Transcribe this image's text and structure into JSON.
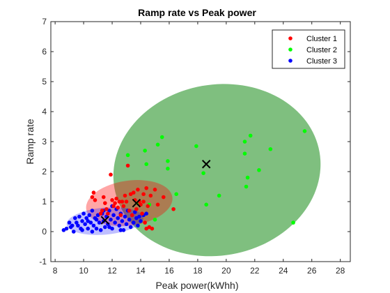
{
  "chart_data": {
    "type": "scatter",
    "title": "Ramp rate vs Peak power",
    "xlabel": "Peak power(kWhh)",
    "ylabel": "Ramp rate",
    "xlim": [
      7.7,
      28.7
    ],
    "ylim": [
      -1,
      7
    ],
    "xticks": [
      8,
      10,
      12,
      14,
      16,
      18,
      20,
      22,
      24,
      26,
      28
    ],
    "yticks": [
      -1,
      0,
      1,
      2,
      3,
      4,
      5,
      6,
      7
    ],
    "grid": false,
    "legend_position": "top-right",
    "series": [
      {
        "name": "Cluster 1",
        "color": "#ff0000",
        "points": [
          [
            10.6,
            1.15
          ],
          [
            10.7,
            1.3
          ],
          [
            10.8,
            1.05
          ],
          [
            11.2,
            0.6
          ],
          [
            11.3,
            0.7
          ],
          [
            11.4,
            1.15
          ],
          [
            11.5,
            0.95
          ],
          [
            11.6,
            0.75
          ],
          [
            11.7,
            0.6
          ],
          [
            11.9,
            1.9
          ],
          [
            12.0,
            1.05
          ],
          [
            12.1,
            0.85
          ],
          [
            12.2,
            0.95
          ],
          [
            12.3,
            1.1
          ],
          [
            12.4,
            0.8
          ],
          [
            12.5,
            1.0
          ],
          [
            12.6,
            0.55
          ],
          [
            12.7,
            1.0
          ],
          [
            12.8,
            0.85
          ],
          [
            12.9,
            1.2
          ],
          [
            13.0,
            1.0
          ],
          [
            13.1,
            2.2
          ],
          [
            13.2,
            0.7
          ],
          [
            13.3,
            1.25
          ],
          [
            13.4,
            0.55
          ],
          [
            13.5,
            1.3
          ],
          [
            13.6,
            1.05
          ],
          [
            13.7,
            0.75
          ],
          [
            13.8,
            1.4
          ],
          [
            13.9,
            1.0
          ],
          [
            14.0,
            0.9
          ],
          [
            14.1,
            0.6
          ],
          [
            14.2,
            1.25
          ],
          [
            14.3,
            0.3
          ],
          [
            14.4,
            1.45
          ],
          [
            14.5,
            0.85
          ],
          [
            14.6,
            0.15
          ],
          [
            14.7,
            1.2
          ],
          [
            14.8,
            0.1
          ],
          [
            15.0,
            1.4
          ],
          [
            15.2,
            0.9
          ],
          [
            15.6,
            1.15
          ],
          [
            16.3,
            0.75
          ],
          [
            14.4,
            0.1
          ],
          [
            14.2,
            1.0
          ]
        ]
      },
      {
        "name": "Cluster 2",
        "color": "#00ff00",
        "points": [
          [
            13.1,
            2.55
          ],
          [
            13.8,
            0.95
          ],
          [
            14.3,
            2.7
          ],
          [
            14.4,
            2.25
          ],
          [
            14.6,
            0.9
          ],
          [
            15.0,
            0.4
          ],
          [
            15.2,
            2.9
          ],
          [
            15.5,
            3.15
          ],
          [
            15.9,
            2.35
          ],
          [
            15.9,
            2.1
          ],
          [
            16.5,
            1.25
          ],
          [
            17.9,
            2.85
          ],
          [
            18.4,
            1.95
          ],
          [
            18.6,
            0.9
          ],
          [
            19.5,
            1.2
          ],
          [
            21.3,
            2.6
          ],
          [
            21.3,
            3.0
          ],
          [
            21.4,
            1.5
          ],
          [
            21.5,
            1.8
          ],
          [
            21.7,
            3.2
          ],
          [
            22.3,
            2.05
          ],
          [
            23.1,
            2.75
          ],
          [
            24.7,
            0.3
          ],
          [
            25.5,
            3.35
          ]
        ]
      },
      {
        "name": "Cluster 3",
        "color": "#0000ff",
        "points": [
          [
            8.6,
            0.05
          ],
          [
            8.8,
            0.1
          ],
          [
            9.0,
            0.3
          ],
          [
            9.1,
            0.15
          ],
          [
            9.2,
            0.2
          ],
          [
            9.3,
            0.0
          ],
          [
            9.4,
            0.45
          ],
          [
            9.5,
            0.3
          ],
          [
            9.6,
            0.2
          ],
          [
            9.7,
            0.5
          ],
          [
            9.8,
            0.1
          ],
          [
            9.9,
            0.35
          ],
          [
            10.0,
            0.6
          ],
          [
            10.1,
            0.25
          ],
          [
            10.2,
            0.45
          ],
          [
            10.3,
            0.1
          ],
          [
            10.4,
            0.55
          ],
          [
            10.5,
            0.3
          ],
          [
            10.6,
            0.7
          ],
          [
            10.7,
            0.2
          ],
          [
            10.8,
            0.45
          ],
          [
            10.9,
            0.1
          ],
          [
            11.0,
            0.55
          ],
          [
            11.1,
            0.3
          ],
          [
            11.2,
            0.05
          ],
          [
            11.3,
            0.6
          ],
          [
            11.4,
            0.35
          ],
          [
            11.5,
            0.15
          ],
          [
            11.6,
            0.5
          ],
          [
            11.7,
            0.25
          ],
          [
            11.8,
            0.7
          ],
          [
            11.9,
            0.4
          ],
          [
            12.0,
            0.1
          ],
          [
            12.1,
            0.55
          ],
          [
            12.2,
            0.3
          ],
          [
            12.3,
            0.75
          ],
          [
            12.4,
            0.45
          ],
          [
            12.5,
            0.2
          ],
          [
            12.6,
            0.6
          ],
          [
            12.7,
            0.35
          ],
          [
            12.8,
            0.05
          ],
          [
            12.9,
            0.5
          ],
          [
            13.0,
            0.25
          ],
          [
            13.1,
            0.7
          ],
          [
            13.2,
            0.4
          ],
          [
            13.3,
            0.15
          ],
          [
            13.4,
            0.55
          ],
          [
            13.5,
            0.3
          ],
          [
            13.6,
            0.65
          ],
          [
            13.7,
            0.45
          ],
          [
            13.8,
            0.2
          ],
          [
            13.9,
            0.5
          ],
          [
            14.0,
            0.35
          ],
          [
            14.2,
            0.55
          ],
          [
            14.4,
            0.6
          ],
          [
            10.3,
            0.35
          ],
          [
            10.9,
            0.4
          ],
          [
            11.4,
            0.7
          ],
          [
            12.0,
            0.85
          ],
          [
            12.6,
            0.05
          ],
          [
            9.9,
            0.05
          ],
          [
            10.6,
            0.0
          ],
          [
            11.8,
            0.15
          ]
        ]
      }
    ],
    "centroids": [
      {
        "cluster": "Cluster 1",
        "x": 13.7,
        "y": 0.95
      },
      {
        "cluster": "Cluster 2",
        "x": 18.6,
        "y": 2.25
      },
      {
        "cluster": "Cluster 3",
        "x": 11.5,
        "y": 0.38
      }
    ],
    "ellipses": [
      {
        "cluster": "Cluster 2",
        "cx": 19.35,
        "cy": 2.05,
        "rx": 7.3,
        "ry": 2.85,
        "angle_deg": 10,
        "color": "#008000",
        "opacity": 0.5
      },
      {
        "cluster": "Cluster 1",
        "cx": 13.2,
        "cy": 0.95,
        "rx": 3.05,
        "ry": 0.75,
        "angle_deg": 8,
        "color": "#ff0000",
        "opacity": 0.35
      },
      {
        "cluster": "Cluster 3",
        "cx": 11.5,
        "cy": 0.35,
        "rx": 2.7,
        "ry": 0.45,
        "angle_deg": 5,
        "color": "#0000ff",
        "opacity": 0.25
      }
    ],
    "legend": [
      "Cluster 1",
      "Cluster 2",
      "Cluster 3"
    ]
  }
}
